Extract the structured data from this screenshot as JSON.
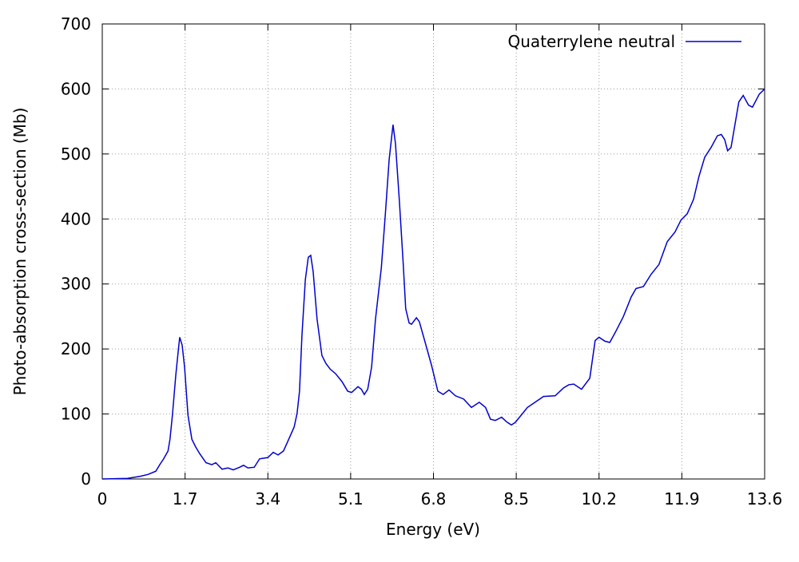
{
  "chart_data": {
    "type": "line",
    "xlabel": "Energy (eV)",
    "ylabel": "Photo-absorption cross-section (Mb)",
    "xlim": [
      0,
      13.6
    ],
    "ylim": [
      0,
      700
    ],
    "xticks": [
      0,
      1.7,
      3.4,
      5.1,
      6.8,
      8.5,
      10.2,
      11.9,
      13.6
    ],
    "yticks": [
      0,
      100,
      200,
      300,
      400,
      500,
      600,
      700
    ],
    "grid": true,
    "legend": "top-right",
    "x": [
      0,
      0.52,
      0.77,
      0.94,
      1.1,
      1.18,
      1.26,
      1.35,
      1.39,
      1.44,
      1.51,
      1.56,
      1.59,
      1.64,
      1.69,
      1.76,
      1.84,
      1.92,
      2.0,
      2.13,
      2.25,
      2.33,
      2.46,
      2.58,
      2.69,
      2.82,
      2.9,
      2.99,
      3.12,
      3.23,
      3.4,
      3.51,
      3.61,
      3.72,
      3.81,
      3.94,
      4.0,
      4.05,
      4.1,
      4.17,
      4.23,
      4.28,
      4.33,
      4.41,
      4.51,
      4.59,
      4.68,
      4.79,
      4.92,
      5.04,
      5.12,
      5.25,
      5.32,
      5.38,
      5.45,
      5.53,
      5.61,
      5.73,
      5.81,
      5.89,
      5.94,
      5.97,
      6.02,
      6.1,
      6.18,
      6.23,
      6.3,
      6.35,
      6.45,
      6.51,
      6.63,
      6.76,
      6.89,
      7.0,
      7.12,
      7.25,
      7.42,
      7.58,
      7.74,
      7.87,
      7.97,
      8.07,
      8.2,
      8.3,
      8.4,
      8.48,
      8.73,
      9.06,
      9.3,
      9.47,
      9.58,
      9.68,
      9.84,
      10.01,
      10.12,
      10.2,
      10.32,
      10.42,
      10.53,
      10.7,
      10.86,
      10.96,
      11.11,
      11.27,
      11.43,
      11.6,
      11.76,
      11.88,
      12.01,
      12.14,
      12.25,
      12.37,
      12.5,
      12.63,
      12.71,
      12.78,
      12.84,
      12.91,
      13.07,
      13.16,
      13.27,
      13.35,
      13.49,
      13.6
    ],
    "series": [
      {
        "name": "Quaterrylene neutral",
        "color": "#0000d0",
        "values": [
          0,
          1,
          4,
          7,
          12,
          22,
          31,
          43,
          61,
          98,
          160,
          197,
          218,
          206,
          172,
          98,
          61,
          49,
          39,
          25,
          22,
          25,
          15,
          17,
          14,
          18,
          21,
          17,
          18,
          31,
          33,
          41,
          37,
          43,
          58,
          80,
          101,
          135,
          221,
          307,
          341,
          344,
          319,
          246,
          190,
          178,
          169,
          162,
          150,
          135,
          133,
          142,
          138,
          130,
          138,
          172,
          246,
          325,
          405,
          491,
          525,
          545,
          516,
          428,
          330,
          262,
          240,
          238,
          248,
          242,
          210,
          175,
          135,
          130,
          137,
          128,
          123,
          110,
          118,
          110,
          92,
          90,
          95,
          88,
          83,
          87,
          110,
          127,
          128,
          140,
          145,
          146,
          138,
          155,
          213,
          218,
          212,
          210,
          225,
          250,
          280,
          293,
          296,
          315,
          330,
          365,
          380,
          398,
          408,
          430,
          465,
          495,
          510,
          528,
          530,
          522,
          505,
          510,
          580,
          590,
          575,
          572,
          592,
          600
        ]
      }
    ]
  }
}
